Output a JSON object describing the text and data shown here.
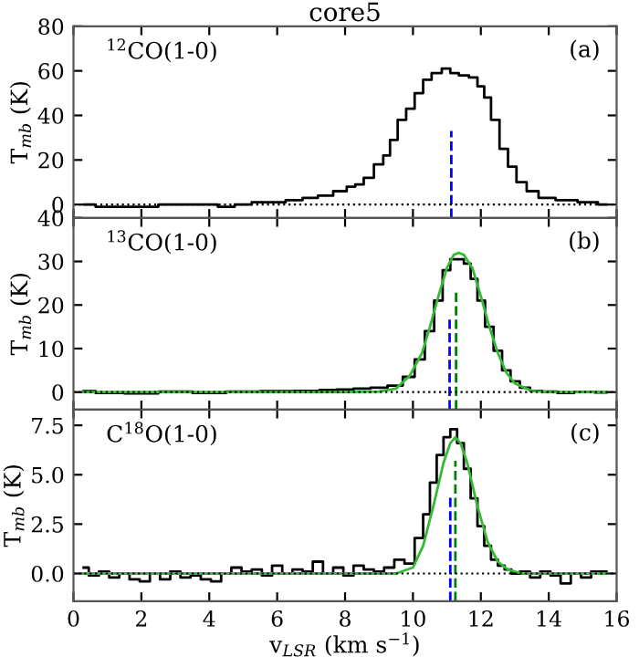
{
  "chart_data": [
    {
      "type": "step",
      "title": "core5",
      "ylabel": "T$_{mb}$ (K)",
      "annotations": [
        "$^{12}$CO(1-0)",
        "(a)"
      ],
      "xlim": [
        0,
        16
      ],
      "xticks": [
        0,
        2,
        4,
        6,
        8,
        10,
        12,
        14,
        16
      ],
      "ylim": [
        -6,
        80
      ],
      "yticks": [
        0,
        20,
        40,
        60,
        80
      ],
      "tick_labels": "y",
      "grid": false,
      "ref_lines": [
        {
          "axis": "y",
          "value": 0,
          "color": "#000000",
          "line_style": "dotted"
        }
      ],
      "series": [
        {
          "color": "#000000",
          "x": [
            0.3,
            1.0,
            1.5,
            2.0,
            3.0,
            4.0,
            4.5,
            5.0,
            5.5,
            6.0,
            6.5,
            7.0,
            7.4,
            7.9,
            8.2,
            8.4,
            8.7,
            9.0,
            9.25,
            9.4,
            9.7,
            9.9,
            10.2,
            10.4,
            10.7,
            11.0,
            11.2,
            11.5,
            11.8,
            12.0,
            12.2,
            12.4,
            12.7,
            12.9,
            13.2,
            13.5,
            13.9,
            14.5,
            15.2,
            15.7
          ],
          "values": [
            0,
            -1,
            -1,
            -1,
            0,
            0,
            -1,
            0,
            1,
            1,
            2,
            3,
            4,
            6,
            8,
            9,
            12,
            18,
            22,
            29,
            38,
            43,
            50,
            56,
            59,
            61,
            59,
            58,
            57,
            53,
            48,
            38,
            25,
            17,
            10,
            6,
            3,
            2,
            1,
            0
          ]
        },
        {
          "type": "line",
          "color": "#0000ff",
          "line_style": "dashed",
          "x": [
            11.13,
            11.13
          ],
          "values": [
            -6,
            33
          ]
        }
      ]
    },
    {
      "type": "step",
      "ylabel": "T$_{mb}$ (K)",
      "annotations": [
        "$^{13}$CO(1-0)",
        "(b)"
      ],
      "xlim": [
        0,
        16
      ],
      "xticks": [
        0,
        2,
        4,
        6,
        8,
        10,
        12,
        14,
        16
      ],
      "ylim": [
        -4,
        40
      ],
      "yticks": [
        0,
        10,
        20,
        30,
        40
      ],
      "tick_labels": "y",
      "grid": false,
      "ref_lines": [
        {
          "axis": "y",
          "value": 0,
          "color": "#000000",
          "line_style": "dotted"
        }
      ],
      "series": [
        {
          "color": "#000000",
          "x": [
            0.3,
            1.0,
            2.0,
            3.0,
            4.0,
            5.0,
            6.0,
            7.0,
            7.5,
            8.0,
            8.5,
            9.0,
            9.5,
            9.9,
            10.2,
            10.5,
            10.75,
            11.0,
            11.2,
            11.4,
            11.6,
            11.8,
            12.0,
            12.25,
            12.5,
            12.75,
            13.0,
            13.3,
            13.6,
            14.0,
            14.5,
            15.0,
            15.7
          ],
          "values": [
            0.2,
            -0.2,
            -0.3,
            0.1,
            -0.2,
            0.1,
            0.2,
            0.3,
            0.5,
            0.6,
            0.8,
            1.0,
            1.5,
            3.5,
            7.5,
            14.0,
            21.0,
            28.0,
            30.5,
            30.5,
            29.5,
            26.0,
            21.0,
            15.0,
            9.5,
            5.0,
            2.5,
            1.0,
            0.3,
            0.1,
            -0.2,
            0.0,
            -0.1
          ]
        },
        {
          "type": "line",
          "color": "#33bb33",
          "x": [
            0.3,
            4.0,
            8.0,
            9.0,
            9.5,
            9.9,
            10.27,
            10.5,
            10.75,
            11.0,
            11.2,
            11.35,
            11.5,
            11.75,
            12.0,
            12.25,
            12.5,
            12.75,
            13.0,
            13.5,
            14.0,
            15.7
          ],
          "values": [
            0.0,
            0.0,
            0.0,
            0.1,
            0.8,
            3.7,
            9.0,
            15.0,
            22.0,
            28.5,
            31.5,
            32.0,
            31.5,
            28.5,
            22.0,
            15.0,
            9.0,
            4.5,
            2.0,
            0.3,
            0.0,
            0.0
          ]
        },
        {
          "type": "line",
          "color": "#0000ff",
          "line_style": "dashed",
          "x": [
            11.08,
            11.08
          ],
          "values": [
            -4,
            17
          ]
        },
        {
          "type": "line",
          "color": "#008000",
          "line_style": "dashed",
          "x": [
            11.27,
            11.27
          ],
          "values": [
            -4,
            23.5
          ]
        }
      ]
    },
    {
      "type": "step",
      "xlabel": "v$_{LSR}$ (km s$^{−1}$)",
      "ylabel": "T$_{mb}$ (K)",
      "annotations": [
        "C$^{18}$O(1-0)",
        "(c)"
      ],
      "xlim": [
        0,
        16
      ],
      "xticks": [
        0,
        2,
        4,
        6,
        8,
        10,
        12,
        14,
        16
      ],
      "ylim": [
        -1.4,
        8.3
      ],
      "yticks": [
        {
          "value": 0,
          "label": "0.0"
        },
        {
          "value": 2.5,
          "label": "2.5"
        },
        {
          "value": 5,
          "label": "5.0"
        },
        {
          "value": 7.5,
          "label": "7.5"
        }
      ],
      "grid": false,
      "ref_lines": [
        {
          "axis": "y",
          "value": 0,
          "color": "#000000",
          "line_style": "dotted"
        }
      ],
      "series": [
        {
          "color": "#000000",
          "x": [
            0.3,
            0.6,
            0.9,
            1.2,
            1.5,
            1.8,
            2.1,
            2.4,
            2.7,
            3.0,
            3.3,
            3.6,
            3.9,
            4.2,
            4.5,
            4.8,
            5.1,
            5.4,
            5.7,
            6.0,
            6.3,
            6.6,
            6.9,
            7.2,
            7.5,
            7.8,
            8.1,
            8.4,
            8.7,
            9.0,
            9.3,
            9.6,
            9.9,
            10.2,
            10.4,
            10.6,
            10.8,
            11.0,
            11.2,
            11.4,
            11.6,
            11.8,
            12.0,
            12.2,
            12.4,
            12.6,
            12.8,
            13.0,
            13.3,
            13.6,
            13.9,
            14.2,
            14.5,
            14.8,
            15.1,
            15.4,
            15.7
          ],
          "values": [
            0.3,
            -0.1,
            0.1,
            -0.2,
            0.0,
            -0.3,
            -0.4,
            0.0,
            -0.3,
            0.1,
            -0.2,
            -0.1,
            -0.3,
            -0.4,
            0.0,
            0.3,
            0.1,
            0.2,
            -0.1,
            0.4,
            0.0,
            0.2,
            0.1,
            0.6,
            0.0,
            0.3,
            -0.1,
            0.4,
            0.2,
            0.1,
            0.3,
            0.7,
            0.5,
            1.8,
            3.0,
            4.6,
            6.0,
            6.9,
            7.3,
            6.6,
            5.3,
            3.8,
            2.4,
            1.4,
            0.7,
            0.4,
            0.2,
            0.0,
            0.1,
            -0.2,
            0.1,
            -0.1,
            -0.5,
            0.0,
            -0.2,
            0.1,
            0.1
          ]
        },
        {
          "type": "line",
          "color": "#33bb33",
          "x": [
            0.3,
            4.0,
            8.0,
            9.5,
            10.0,
            10.3,
            10.6,
            10.9,
            11.1,
            11.25,
            11.4,
            11.6,
            11.9,
            12.2,
            12.5,
            12.8,
            13.2,
            14.0,
            15.7
          ],
          "values": [
            0.0,
            0.0,
            0.0,
            0.0,
            0.3,
            1.4,
            3.4,
            5.6,
            6.6,
            6.9,
            6.6,
            5.6,
            3.4,
            1.6,
            0.6,
            0.2,
            0.0,
            0.0,
            0.0
          ]
        },
        {
          "type": "line",
          "color": "#0000ff",
          "line_style": "dashed",
          "x": [
            11.1,
            11.1
          ],
          "values": [
            -1.4,
            3.9
          ]
        },
        {
          "type": "line",
          "color": "#008000",
          "line_style": "dashed",
          "x": [
            11.25,
            11.25
          ],
          "values": [
            -1.4,
            5.7
          ]
        }
      ]
    }
  ]
}
